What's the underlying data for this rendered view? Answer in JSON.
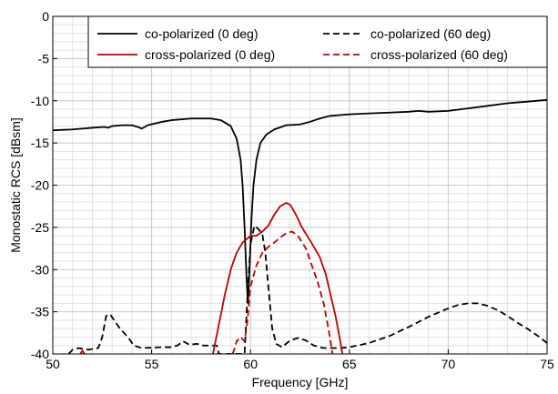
{
  "chart_data": {
    "type": "line",
    "title": "",
    "xlabel": "Frequency [GHz]",
    "ylabel": "Monostatic RCS [dBsm]",
    "xlim": [
      50,
      75
    ],
    "ylim": [
      -40,
      0
    ],
    "xticks": [
      50,
      55,
      60,
      65,
      70,
      75
    ],
    "yticks": [
      0,
      -5,
      -10,
      -15,
      -20,
      -25,
      -30,
      -35,
      -40
    ],
    "x_minor_step": 1,
    "y_minor_step": 1,
    "grid": true,
    "legend_position": "top-right",
    "series": [
      {
        "name": "co-polarized (0 deg)",
        "color": "#000000",
        "dash": "solid",
        "points": [
          [
            50,
            -13.5
          ],
          [
            51,
            -13.4
          ],
          [
            52,
            -13.2
          ],
          [
            52.6,
            -13.1
          ],
          [
            52.8,
            -13.2
          ],
          [
            53,
            -13.0
          ],
          [
            53.5,
            -12.9
          ],
          [
            54,
            -12.9
          ],
          [
            54.3,
            -13.1
          ],
          [
            54.5,
            -13.3
          ],
          [
            54.8,
            -12.9
          ],
          [
            55.5,
            -12.5
          ],
          [
            56,
            -12.3
          ],
          [
            57,
            -12.1
          ],
          [
            58,
            -12.1
          ],
          [
            58.5,
            -12.3
          ],
          [
            59,
            -13.0
          ],
          [
            59.3,
            -14.5
          ],
          [
            59.5,
            -17.0
          ],
          [
            59.6,
            -20.0
          ],
          [
            59.7,
            -25.0
          ],
          [
            59.8,
            -31.0
          ],
          [
            59.87,
            -34.0
          ],
          [
            59.95,
            -30.0
          ],
          [
            60.05,
            -24.0
          ],
          [
            60.15,
            -20.0
          ],
          [
            60.3,
            -17.0
          ],
          [
            60.5,
            -15.0
          ],
          [
            60.8,
            -14.0
          ],
          [
            61.2,
            -13.4
          ],
          [
            61.8,
            -12.9
          ],
          [
            62.5,
            -12.8
          ],
          [
            63,
            -12.5
          ],
          [
            63.5,
            -12.1
          ],
          [
            64,
            -11.8
          ],
          [
            65,
            -11.6
          ],
          [
            66,
            -11.5
          ],
          [
            67,
            -11.4
          ],
          [
            68,
            -11.3
          ],
          [
            68.5,
            -11.2
          ],
          [
            69,
            -11.3
          ],
          [
            70,
            -11.2
          ],
          [
            71,
            -10.9
          ],
          [
            72,
            -10.6
          ],
          [
            73,
            -10.3
          ],
          [
            74,
            -10.1
          ],
          [
            75,
            -9.9
          ]
        ]
      },
      {
        "name": "co-polarized (60 deg)",
        "color": "#000000",
        "dash": "dashed",
        "points": [
          [
            50.8,
            -40
          ],
          [
            51,
            -39.5
          ],
          [
            51.3,
            -39.3
          ],
          [
            51.8,
            -39.5
          ],
          [
            52.3,
            -39.3
          ],
          [
            52.5,
            -38.0
          ],
          [
            52.7,
            -35.5
          ],
          [
            52.9,
            -35.3
          ],
          [
            53.1,
            -36.0
          ],
          [
            53.4,
            -37.0
          ],
          [
            53.8,
            -38.0
          ],
          [
            54.1,
            -39.0
          ],
          [
            54.5,
            -39.3
          ],
          [
            55.5,
            -39.2
          ],
          [
            56,
            -39.2
          ],
          [
            56.3,
            -39.0
          ],
          [
            56.6,
            -38.5
          ],
          [
            56.9,
            -38.9
          ],
          [
            57.3,
            -38.8
          ],
          [
            57.6,
            -39.0
          ],
          [
            58,
            -39.0
          ],
          [
            58.3,
            -39.0
          ],
          [
            58.4,
            -40
          ],
          [
            59.7,
            -40
          ],
          [
            59.85,
            -33.0
          ],
          [
            60.0,
            -27.0
          ],
          [
            60.2,
            -24.8
          ],
          [
            60.4,
            -25.2
          ],
          [
            60.6,
            -25.8
          ],
          [
            60.75,
            -28.0
          ],
          [
            60.9,
            -32.0
          ],
          [
            61.1,
            -37.0
          ],
          [
            61.3,
            -38.8
          ],
          [
            61.6,
            -39.2
          ],
          [
            62.0,
            -38.4
          ],
          [
            62.4,
            -38.1
          ],
          [
            62.8,
            -38.4
          ],
          [
            63.2,
            -39.0
          ],
          [
            63.7,
            -39.3
          ],
          [
            64.5,
            -39.3
          ],
          [
            65,
            -39.2
          ],
          [
            66,
            -38.7
          ],
          [
            67,
            -37.9
          ],
          [
            68,
            -36.8
          ],
          [
            69,
            -35.6
          ],
          [
            70,
            -34.6
          ],
          [
            70.5,
            -34.2
          ],
          [
            71,
            -34.0
          ],
          [
            71.5,
            -34.0
          ],
          [
            72,
            -34.3
          ],
          [
            72.5,
            -34.8
          ],
          [
            73,
            -35.5
          ],
          [
            73.5,
            -36.3
          ],
          [
            74,
            -37.0
          ],
          [
            74.5,
            -37.8
          ],
          [
            75,
            -38.7
          ]
        ]
      },
      {
        "name": "cross-polarized (0 deg)",
        "color": "#c00000",
        "dash": "solid",
        "points": [
          [
            58.1,
            -40
          ],
          [
            58.4,
            -36.5
          ],
          [
            58.7,
            -33.0
          ],
          [
            59.0,
            -30.0
          ],
          [
            59.3,
            -28.0
          ],
          [
            59.6,
            -26.8
          ],
          [
            60.0,
            -26.0
          ],
          [
            60.3,
            -26.0
          ],
          [
            60.6,
            -25.5
          ],
          [
            60.9,
            -24.8
          ],
          [
            61.2,
            -23.5
          ],
          [
            61.5,
            -22.5
          ],
          [
            61.8,
            -22.1
          ],
          [
            62.0,
            -22.3
          ],
          [
            62.3,
            -23.5
          ],
          [
            62.6,
            -25.0
          ],
          [
            63.0,
            -26.5
          ],
          [
            63.5,
            -28.5
          ],
          [
            63.8,
            -30.5
          ],
          [
            64.0,
            -32.5
          ],
          [
            64.3,
            -35.5
          ],
          [
            64.5,
            -38.0
          ],
          [
            64.65,
            -40
          ]
        ]
      },
      {
        "name": "cross-polarized (60 deg)",
        "color": "#c00000",
        "dash": "dashed",
        "points": [
          [
            59.1,
            -40
          ],
          [
            59.3,
            -38.5
          ],
          [
            59.5,
            -38.0
          ],
          [
            59.7,
            -38.5
          ],
          [
            59.85,
            -36.0
          ],
          [
            60.0,
            -32.0
          ],
          [
            60.3,
            -29.5
          ],
          [
            60.6,
            -28.0
          ],
          [
            60.9,
            -27.3
          ],
          [
            61.2,
            -26.8
          ],
          [
            61.5,
            -26.2
          ],
          [
            61.8,
            -25.7
          ],
          [
            62.1,
            -25.5
          ],
          [
            62.4,
            -26.0
          ],
          [
            62.8,
            -27.5
          ],
          [
            63.1,
            -29.5
          ],
          [
            63.4,
            -31.5
          ],
          [
            63.7,
            -34.0
          ],
          [
            63.9,
            -36.5
          ],
          [
            64.05,
            -38.5
          ],
          [
            64.15,
            -40
          ]
        ]
      },
      {
        "name": "",
        "color": "#c00000",
        "dash": "solid",
        "points": [
          [
            51.4,
            -40
          ],
          [
            51.5,
            -39.6
          ],
          [
            51.6,
            -40
          ]
        ]
      }
    ]
  }
}
